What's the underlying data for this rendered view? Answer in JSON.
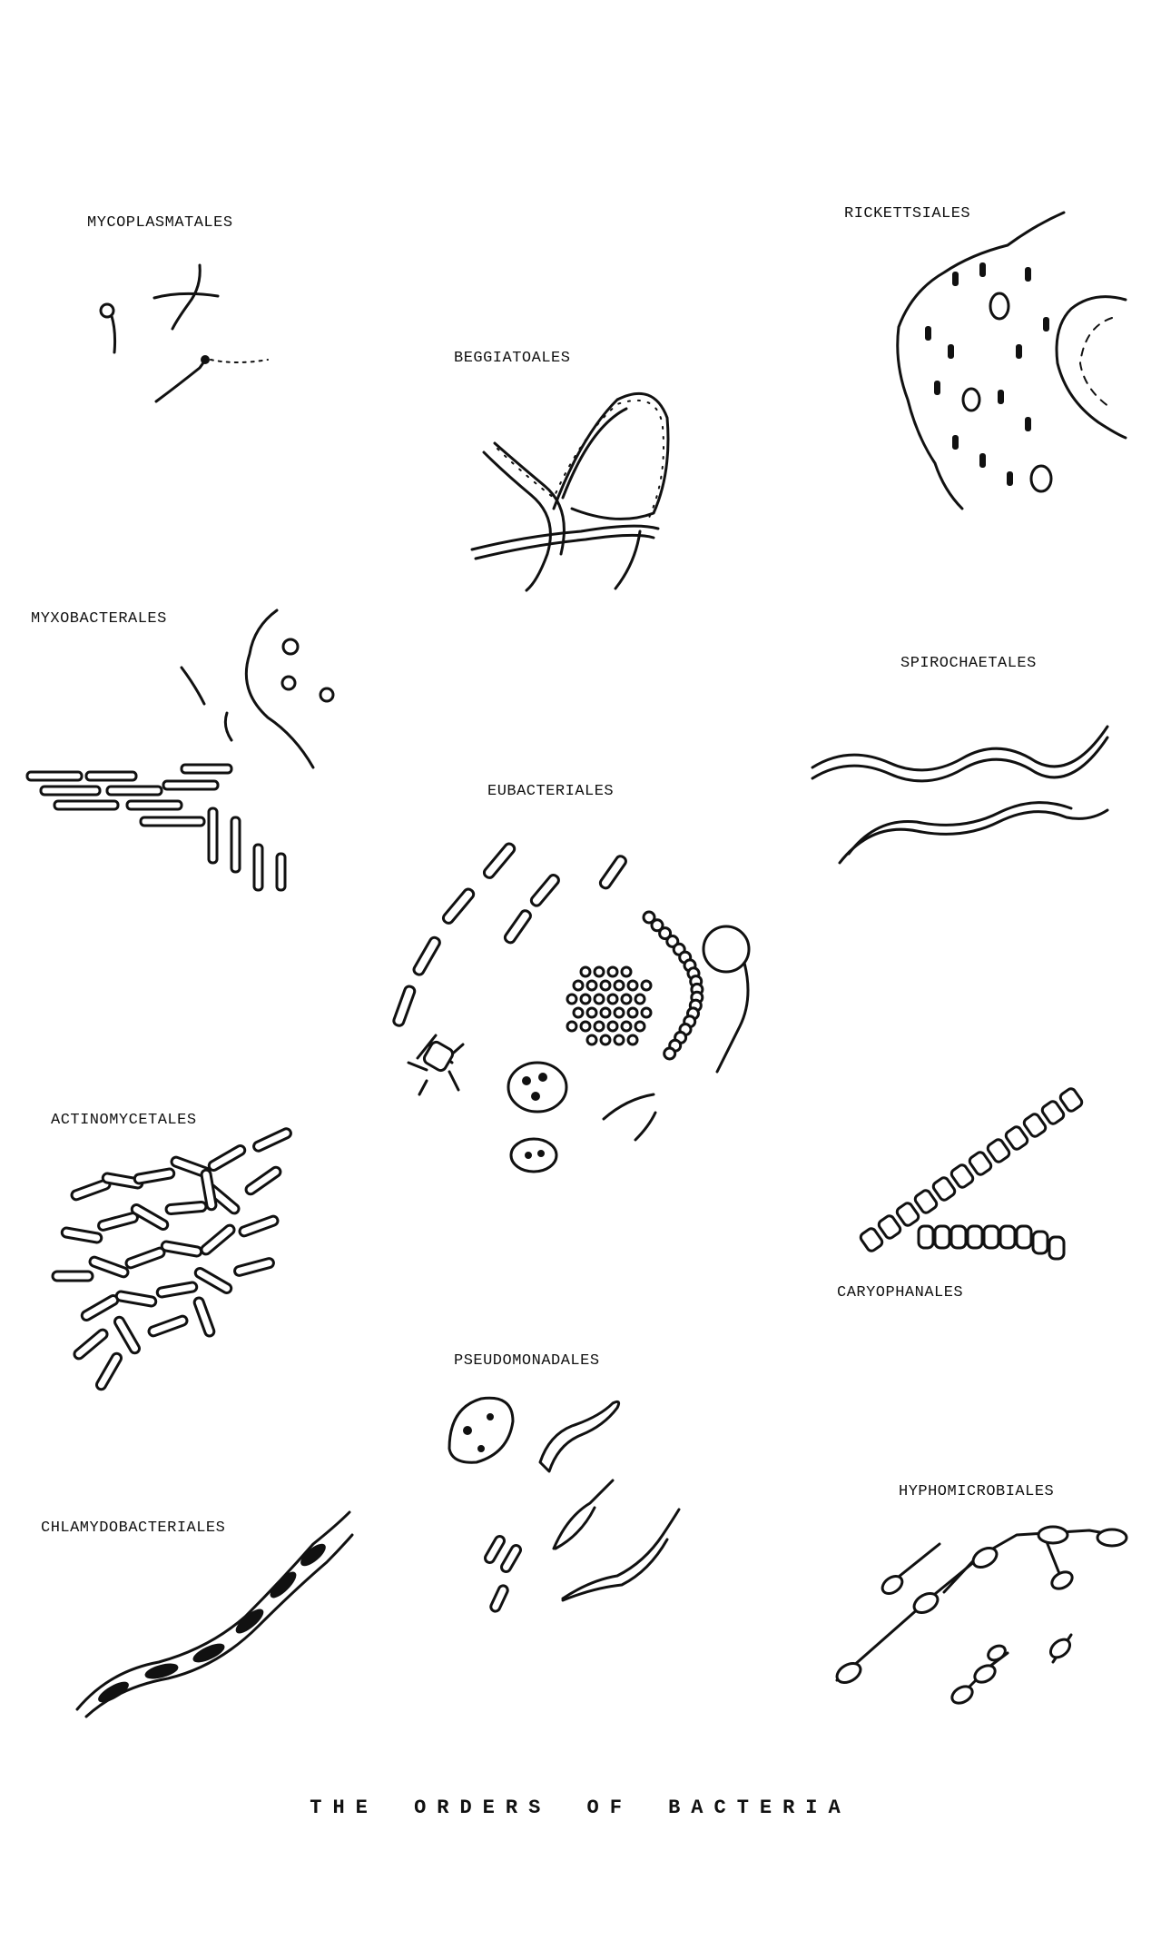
{
  "orders": {
    "mycoplasmatales": "MYCOPLASMATALES",
    "rickettsiales": "RICKETTSIALES",
    "beggiatoales": "BEGGIATOALES",
    "myxobacterales": "MYXOBACTERALES",
    "spirochaetales": "SPIROCHAETALES",
    "eubacteriales": "EUBACTERIALES",
    "actinomycetales": "ACTINOMYCETALES",
    "caryophanales": "CARYOPHANALES",
    "pseudomonadales": "PSEUDOMONADALES",
    "chlamydobacteriales": "CHLAMYDOBACTERIALES",
    "hyphomicrobiales": "HYPHOMICROBIALES"
  },
  "caption": "THE ORDERS OF BACTERIA"
}
